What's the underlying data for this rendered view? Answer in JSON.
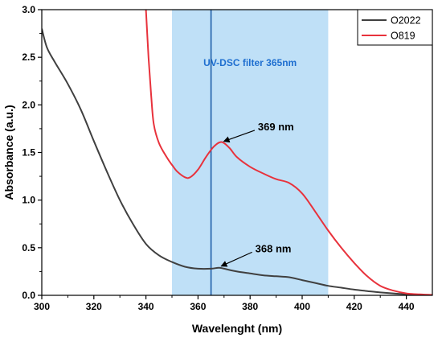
{
  "chart_data": {
    "type": "line",
    "xlabel": "Wavelenght (nm)",
    "ylabel": "Absorbance (a.u.)",
    "xlim": [
      300,
      450
    ],
    "ylim": [
      0,
      3.0
    ],
    "x_ticks": [
      300,
      320,
      340,
      360,
      380,
      400,
      420,
      440
    ],
    "x_tick_labels": [
      "300",
      "320",
      "340",
      "360",
      "380",
      "400",
      "420",
      "440"
    ],
    "y_ticks": [
      0,
      0.5,
      1.0,
      1.5,
      2.0,
      2.5,
      3.0
    ],
    "y_tick_labels": [
      "0.0",
      "0.5",
      "1.0",
      "1.5",
      "2.0",
      "2.5",
      "3.0"
    ],
    "grid": false,
    "legend_position": "top-right",
    "colors": {
      "O2022": "#404040",
      "O819": "#e8323c",
      "band_fill": "#bfe0f7",
      "band_text": "#1f6fd0",
      "marker_line": "#1f5fa8"
    },
    "series": [
      {
        "name": "O2022",
        "x": [
          300,
          302,
          305,
          310,
          315,
          320,
          325,
          330,
          335,
          340,
          345,
          350,
          355,
          360,
          365,
          368,
          370,
          375,
          380,
          385,
          390,
          395,
          400,
          405,
          410,
          415,
          420,
          425,
          430,
          435,
          440,
          445,
          450
        ],
        "y": [
          2.8,
          2.6,
          2.45,
          2.22,
          1.95,
          1.62,
          1.3,
          1.0,
          0.75,
          0.54,
          0.42,
          0.35,
          0.3,
          0.28,
          0.28,
          0.29,
          0.28,
          0.25,
          0.23,
          0.21,
          0.2,
          0.19,
          0.16,
          0.13,
          0.1,
          0.08,
          0.06,
          0.045,
          0.03,
          0.02,
          0.012,
          0.006,
          0.003
        ]
      },
      {
        "name": "O819",
        "x": [
          340,
          341,
          342,
          343,
          345,
          348,
          350,
          352,
          355,
          357,
          360,
          363,
          366,
          369,
          372,
          375,
          380,
          385,
          390,
          395,
          400,
          405,
          410,
          415,
          420,
          425,
          430,
          435,
          440,
          445,
          450
        ],
        "y": [
          3.0,
          2.5,
          2.1,
          1.8,
          1.6,
          1.45,
          1.37,
          1.3,
          1.24,
          1.24,
          1.32,
          1.45,
          1.56,
          1.61,
          1.55,
          1.45,
          1.35,
          1.28,
          1.22,
          1.18,
          1.07,
          0.88,
          0.68,
          0.5,
          0.34,
          0.2,
          0.1,
          0.05,
          0.02,
          0.01,
          0.004
        ]
      }
    ],
    "band": {
      "x0": 350,
      "x1": 410,
      "label": "UV-DSC filter 365nm"
    },
    "marker_line_x": 365,
    "annotations": [
      {
        "text": "369 nm",
        "point": [
          369,
          1.6
        ],
        "label_pos": [
          383,
          1.75
        ]
      },
      {
        "text": "368 nm",
        "point": [
          368,
          0.29
        ],
        "label_pos": [
          382,
          0.47
        ]
      }
    ]
  }
}
